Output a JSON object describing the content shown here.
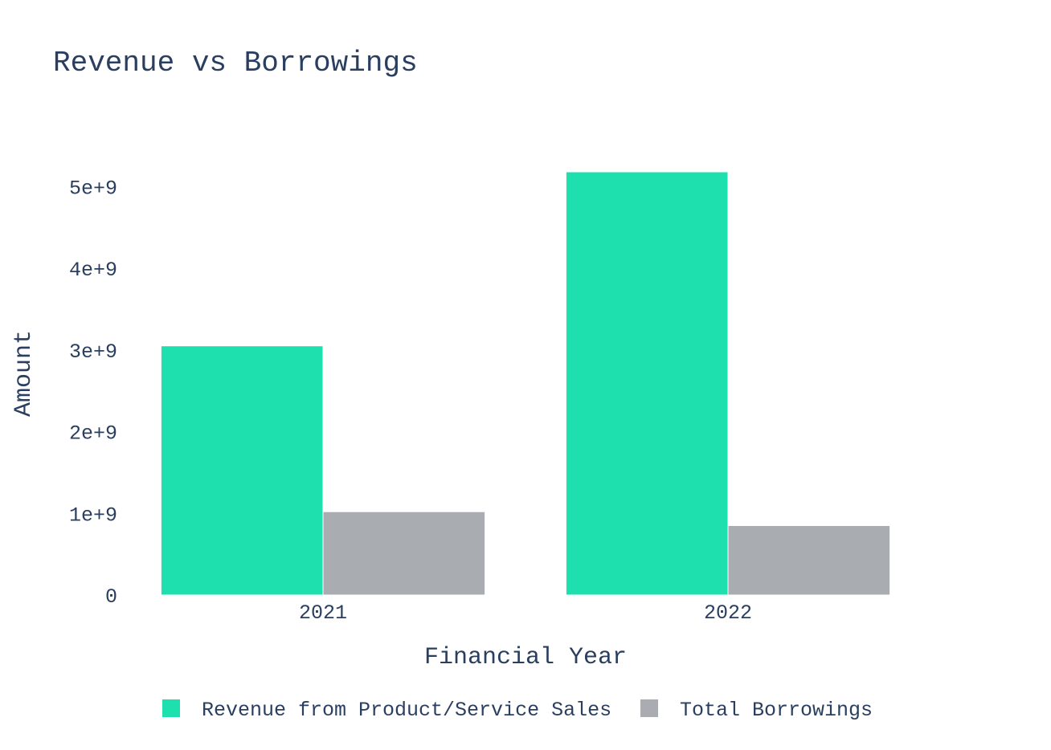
{
  "chart_data": {
    "type": "bar",
    "title": "Revenue vs Borrowings",
    "xlabel": "Financial Year",
    "ylabel": "Amount",
    "categories": [
      "2021",
      "2022"
    ],
    "series": [
      {
        "name": "Revenue from Product/Service Sales",
        "values": [
          3050000000,
          5180000000
        ],
        "color": "#1ee0ae"
      },
      {
        "name": "Total Borrowings",
        "values": [
          1020000000,
          850000000
        ],
        "color": "#a9acb1"
      }
    ],
    "ylim": [
      0,
      5180000000
    ],
    "yticks": [
      0,
      1000000000,
      2000000000,
      3000000000,
      4000000000,
      5000000000
    ],
    "ytick_labels": [
      "0",
      "1e+9",
      "2e+9",
      "3e+9",
      "4e+9",
      "5e+9"
    ],
    "grid": false,
    "legend_position": "bottom-center",
    "barmode": "group"
  }
}
